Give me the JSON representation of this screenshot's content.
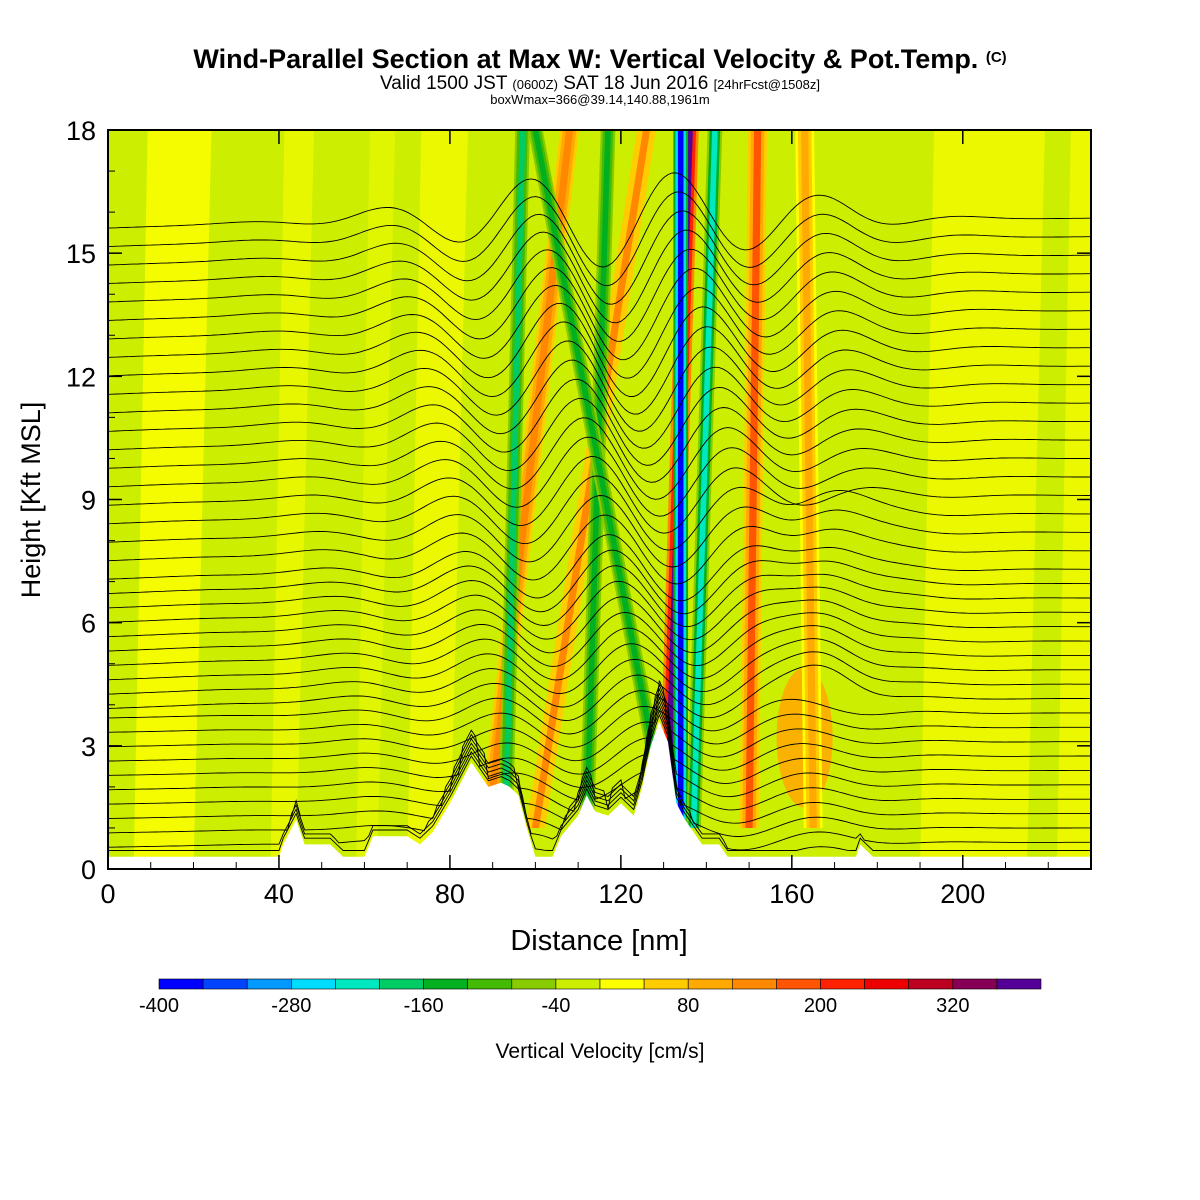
{
  "header": {
    "title": "Wind-Parallel Section at Max W: Vertical Velocity & Pot.Temp.",
    "copyright": "(C)",
    "valid_a": "Valid 1500 JST",
    "valid_zulu": "(0600Z)",
    "valid_b": "SAT 18 Jun 2016",
    "forecast": "[24hrFcst@1508z]",
    "box_info": "boxWmax=366@39.14,140.88,1961m"
  },
  "chart_data": {
    "type": "heatmap",
    "xlabel": "Distance [nm]",
    "ylabel": "Height [Kft MSL]",
    "xlim": [
      0,
      230
    ],
    "ylim": [
      0,
      18
    ],
    "x_ticks": [
      0,
      40,
      80,
      120,
      160,
      200
    ],
    "y_ticks": [
      0,
      3,
      6,
      9,
      12,
      15,
      18
    ],
    "colorbar": {
      "label": "Vertical Velocity [cm/s]",
      "range": [
        -400,
        400
      ],
      "tick_labels": [
        -400,
        -280,
        -160,
        -40,
        80,
        200,
        320
      ],
      "colors": [
        "#0000ff",
        "#0044ff",
        "#0099ff",
        "#00ddff",
        "#00e8c0",
        "#00cc66",
        "#00b020",
        "#44bb00",
        "#88cc00",
        "#ccee00",
        "#ffff00",
        "#ffcc00",
        "#ffaa00",
        "#ff8800",
        "#ff5500",
        "#ff2200",
        "#ee0000",
        "#bb0022",
        "#880055",
        "#550099"
      ]
    },
    "updraft_bands": [
      {
        "x_base": 89,
        "x_top": 108,
        "w": 140
      },
      {
        "x_base": 100,
        "x_top": 126,
        "w": 120
      },
      {
        "x_base": 131,
        "x_top": 136,
        "w": 366
      },
      {
        "x_base": 150,
        "x_top": 152,
        "w": 180
      },
      {
        "x_base": 165,
        "x_top": 163,
        "w": 80
      }
    ],
    "downdraft_bands": [
      {
        "x_base": 93,
        "x_top": 97,
        "w": -180
      },
      {
        "x_base": 112,
        "x_top": 117,
        "w": -130
      },
      {
        "x_base": 134,
        "x_top": 134,
        "w": -380
      },
      {
        "x_base": 137,
        "x_top": 142,
        "w": -220
      },
      {
        "x_base": 131,
        "x_top": 100,
        "w": -140
      }
    ],
    "terrain": [
      {
        "x": 0,
        "h": 0.3
      },
      {
        "x": 40,
        "h": 0.3
      },
      {
        "x": 41,
        "h": 0.6
      },
      {
        "x": 44,
        "h": 1.2
      },
      {
        "x": 46,
        "h": 0.6
      },
      {
        "x": 52,
        "h": 0.6
      },
      {
        "x": 55,
        "h": 0.3
      },
      {
        "x": 60,
        "h": 0.3
      },
      {
        "x": 62,
        "h": 0.8
      },
      {
        "x": 70,
        "h": 0.8
      },
      {
        "x": 73,
        "h": 0.6
      },
      {
        "x": 76,
        "h": 0.9
      },
      {
        "x": 80,
        "h": 1.6
      },
      {
        "x": 83,
        "h": 2.2
      },
      {
        "x": 85,
        "h": 2.6
      },
      {
        "x": 87,
        "h": 2.3
      },
      {
        "x": 89,
        "h": 2.0
      },
      {
        "x": 92,
        "h": 2.1
      },
      {
        "x": 94,
        "h": 2.0
      },
      {
        "x": 96,
        "h": 1.8
      },
      {
        "x": 98,
        "h": 1.0
      },
      {
        "x": 100,
        "h": 0.3
      },
      {
        "x": 104,
        "h": 0.3
      },
      {
        "x": 106,
        "h": 0.8
      },
      {
        "x": 110,
        "h": 1.3
      },
      {
        "x": 112,
        "h": 1.8
      },
      {
        "x": 114,
        "h": 1.4
      },
      {
        "x": 117,
        "h": 1.3
      },
      {
        "x": 120,
        "h": 1.6
      },
      {
        "x": 123,
        "h": 1.3
      },
      {
        "x": 125,
        "h": 2.0
      },
      {
        "x": 127,
        "h": 3.0
      },
      {
        "x": 129,
        "h": 3.6
      },
      {
        "x": 131,
        "h": 3.1
      },
      {
        "x": 133,
        "h": 1.6
      },
      {
        "x": 135,
        "h": 1.2
      },
      {
        "x": 139,
        "h": 0.6
      },
      {
        "x": 143,
        "h": 0.6
      },
      {
        "x": 145,
        "h": 0.3
      },
      {
        "x": 175,
        "h": 0.3
      },
      {
        "x": 176,
        "h": 0.6
      },
      {
        "x": 179,
        "h": 0.3
      },
      {
        "x": 230,
        "h": 0.3
      }
    ],
    "isentropes": {
      "count": 40,
      "base_level": 0.3,
      "spacing_low": 0.35,
      "spacing_high": 0.45
    }
  }
}
